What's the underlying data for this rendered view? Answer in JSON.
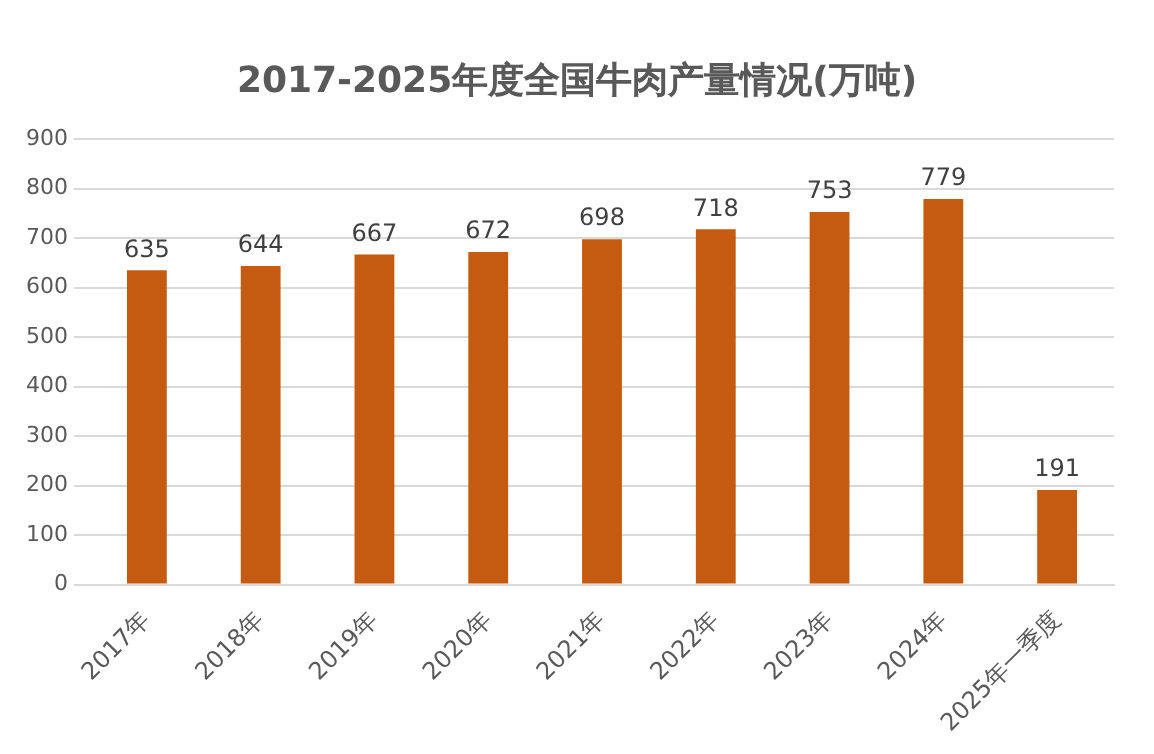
{
  "chart_data": {
    "type": "bar",
    "title": "2017-2025年度全国牛肉产量情况(万吨)",
    "categories": [
      "2017年",
      "2018年",
      "2019年",
      "2020年",
      "2021年",
      "2022年",
      "2023年",
      "2024年",
      "2025年一季度"
    ],
    "values": [
      635,
      644,
      667,
      672,
      698,
      718,
      753,
      779,
      191
    ],
    "color": "#c55a11",
    "ylim": [
      0,
      900
    ],
    "yticks": [
      0,
      100,
      200,
      300,
      400,
      500,
      600,
      700,
      800,
      900
    ],
    "grid": "y",
    "data_labels": true,
    "legend": false
  }
}
